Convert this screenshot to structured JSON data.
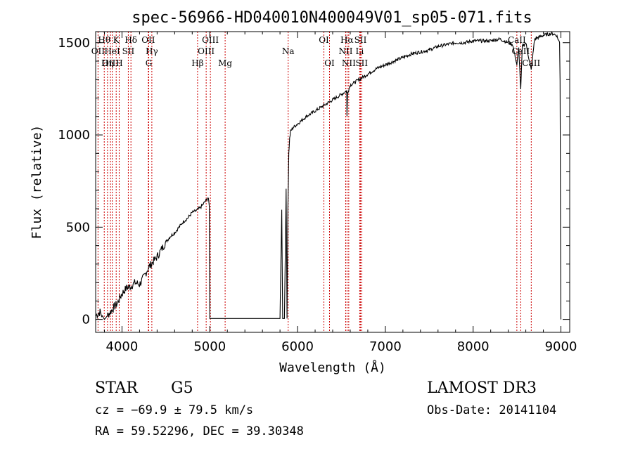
{
  "chart_data": {
    "type": "line",
    "title": "spec-56966-HD040010N400049V01_sp05-071.fits",
    "xlabel": "Wavelength (Å)",
    "ylabel": "Flux (relative)",
    "xlim": [
      3700,
      9100
    ],
    "ylim": [
      -70,
      1560
    ],
    "xticks": [
      4000,
      5000,
      6000,
      7000,
      8000,
      9000
    ],
    "yticks": [
      0,
      500,
      1000,
      1500
    ],
    "grid": false,
    "series": [
      {
        "x": [
          3700,
          3750,
          3800,
          3850,
          3900,
          3950,
          4000,
          4050,
          4100,
          4150,
          4200,
          4250,
          4300,
          4350,
          4400,
          4450,
          4500,
          4550,
          4600,
          4650,
          4700,
          4750,
          4800,
          4850,
          4900,
          4950,
          4980,
          4995,
          5000,
          5100,
          5200,
          5400,
          5600,
          5800,
          5820,
          5830,
          5850,
          5870,
          5880,
          5890,
          5900,
          5910,
          5920,
          5950,
          6000,
          6050,
          6100,
          6200,
          6300,
          6400,
          6500,
          6560,
          6563,
          6570,
          6600,
          6700,
          6800,
          6900,
          7000,
          7100,
          7200,
          7300,
          7400,
          7500,
          7600,
          7700,
          7800,
          7900,
          8000,
          8100,
          8200,
          8300,
          8400,
          8450,
          8498,
          8520,
          8542,
          8560,
          8600,
          8662,
          8700,
          8800,
          8900,
          8950,
          8985,
          8990,
          8995,
          9000
        ],
        "values": [
          20,
          40,
          0,
          30,
          60,
          90,
          140,
          170,
          180,
          200,
          190,
          230,
          280,
          310,
          340,
          380,
          420,
          450,
          470,
          500,
          530,
          550,
          580,
          590,
          610,
          640,
          660,
          620,
          5,
          5,
          5,
          5,
          5,
          5,
          600,
          5,
          5,
          700,
          5,
          600,
          900,
          980,
          1020,
          1040,
          1060,
          1080,
          1100,
          1130,
          1160,
          1190,
          1220,
          1240,
          1100,
          1230,
          1270,
          1300,
          1330,
          1360,
          1380,
          1400,
          1420,
          1440,
          1450,
          1460,
          1480,
          1490,
          1500,
          1500,
          1510,
          1510,
          1510,
          1520,
          1500,
          1490,
          1380,
          1470,
          1240,
          1480,
          1500,
          1350,
          1520,
          1540,
          1550,
          1540,
          1500,
          1300,
          600,
          0
        ]
      }
    ],
    "spectral_lines": [
      {
        "label": "Hθ",
        "wl": 3798,
        "row": 1
      },
      {
        "label": "K",
        "wl": 3934,
        "row": 1
      },
      {
        "label": "Hδ",
        "wl": 4102,
        "row": 1
      },
      {
        "label": "OII",
        "wl": 4300,
        "row": 1
      },
      {
        "label": "OIII",
        "wl": 5007,
        "row": 1
      },
      {
        "label": "OI",
        "wl": 6300,
        "row": 1
      },
      {
        "label": "Hα",
        "wl": 6563,
        "row": 1
      },
      {
        "label": "SII",
        "wl": 6717,
        "row": 1
      },
      {
        "label": "CaII",
        "wl": 8498,
        "row": 1
      },
      {
        "label": "OII",
        "wl": 3727,
        "row": 2
      },
      {
        "label": "HeI",
        "wl": 3889,
        "row": 2
      },
      {
        "label": "SII",
        "wl": 4072,
        "row": 2
      },
      {
        "label": "Hγ",
        "wl": 4340,
        "row": 2
      },
      {
        "label": "OIII",
        "wl": 4959,
        "row": 2
      },
      {
        "label": "Na",
        "wl": 5893,
        "row": 2
      },
      {
        "label": "NII",
        "wl": 6548,
        "row": 2
      },
      {
        "label": "Li",
        "wl": 6708,
        "row": 2
      },
      {
        "label": "CaII",
        "wl": 8542,
        "row": 2
      },
      {
        "label": "OIII",
        "wl": 3869,
        "row": 3
      },
      {
        "label": "Hη",
        "wl": 3835,
        "row": 3
      },
      {
        "label": "H",
        "wl": 3968,
        "row": 3
      },
      {
        "label": "G",
        "wl": 4305,
        "row": 3
      },
      {
        "label": "Hβ",
        "wl": 4861,
        "row": 3
      },
      {
        "label": "Mg",
        "wl": 5175,
        "row": 3
      },
      {
        "label": "OI",
        "wl": 6364,
        "row": 3
      },
      {
        "label": "NII",
        "wl": 6583,
        "row": 3
      },
      {
        "label": "SII",
        "wl": 6731,
        "row": 3
      },
      {
        "label": "CaII",
        "wl": 8662,
        "row": 3
      }
    ],
    "line_color": "#cc0000"
  },
  "info": {
    "object_class": "STAR",
    "subclass": "G5",
    "survey": "LAMOST DR3",
    "cz": "cz = −69.9 ± 79.5 km/s",
    "obs_date": "Obs-Date: 20141104",
    "coords": "RA =  59.52296, DEC =  39.30348"
  }
}
